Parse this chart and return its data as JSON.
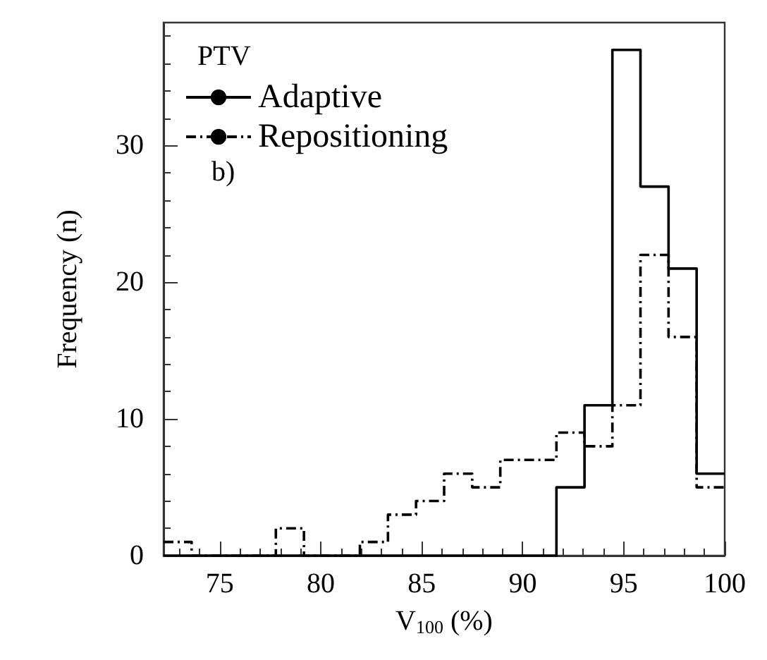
{
  "chart_data": {
    "type": "histogram",
    "xlabel": "V$_{100}$ (%)",
    "ylabel": "Frequency (n)",
    "legend_title": "PTV",
    "annotations": [
      "b)"
    ],
    "bins": [
      72.22,
      73.61,
      75,
      76.39,
      77.78,
      79.17,
      80.56,
      81.94,
      83.33,
      84.72,
      86.11,
      87.5,
      88.89,
      90.28,
      91.67,
      93.06,
      94.44,
      95.83,
      97.22,
      98.61,
      100
    ],
    "series": [
      {
        "name": "Adaptive",
        "color": "#000000",
        "line_style": "solid",
        "values": [
          0,
          0,
          0,
          0,
          0,
          0,
          0,
          0,
          0,
          0,
          0,
          0,
          0,
          0,
          5,
          11,
          37,
          27,
          21,
          6
        ]
      },
      {
        "name": "Repositioning",
        "color": "#000000",
        "line_style": "dashed",
        "values": [
          1,
          0,
          0,
          0,
          2,
          0,
          0,
          1,
          3,
          4,
          6,
          5,
          7,
          7,
          9,
          8,
          11,
          22,
          16,
          5
        ]
      }
    ],
    "xlim": [
      72.22,
      100
    ],
    "xticks": [
      75,
      80,
      85,
      90,
      95,
      100
    ],
    "ylim": [
      0,
      39
    ],
    "yticks": [
      0,
      10,
      20,
      30
    ],
    "grid": false,
    "legend": "top left"
  }
}
